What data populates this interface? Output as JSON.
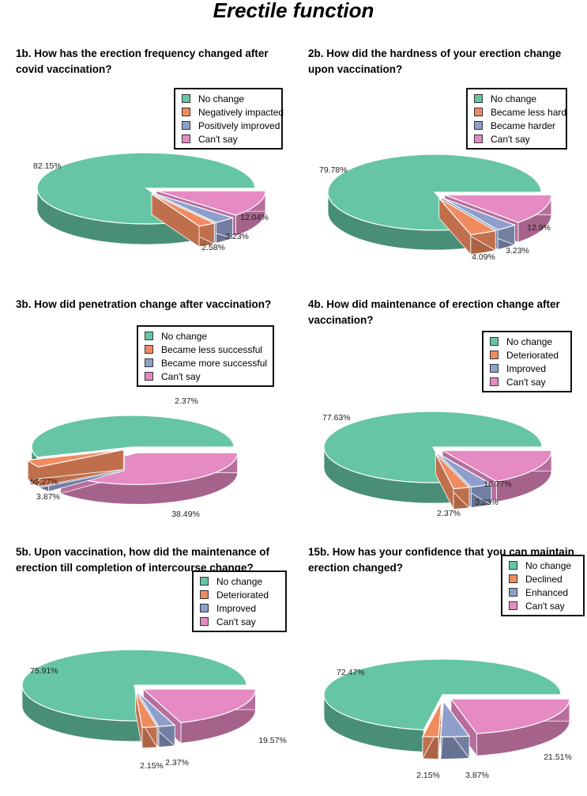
{
  "page_title": "Erectile function",
  "colors": {
    "no_change": "#66c5a5",
    "negative": "#f08b5f",
    "positive": "#8f9fcb",
    "cant_say": "#e58ac3"
  },
  "chart_data": [
    {
      "type": "pie",
      "title": "1b. How has the erection frequency changed after covid vaccination?",
      "labels": [
        "No change",
        "Negatively impacted",
        "Positively improved",
        "Can't say"
      ],
      "values": [
        82.15,
        2.58,
        3.23,
        12.04
      ],
      "value_labels": [
        "82.15%",
        "2.58%",
        "3.23%",
        "12.04%"
      ],
      "legend_position": "top-right"
    },
    {
      "type": "pie",
      "title": "2b.  How did the hardness of your erection change upon vaccination?",
      "labels": [
        "No change",
        "Became less hard",
        "Became harder",
        "Can't say"
      ],
      "values": [
        79.78,
        4.09,
        3.23,
        12.9
      ],
      "value_labels": [
        "79.78%",
        "4.09%",
        "3.23%",
        "12.9%"
      ],
      "legend_position": "top-right"
    },
    {
      "type": "pie",
      "title": "3b. How did penetration change after vaccination?",
      "labels": [
        "No change",
        "Became less successful",
        "Became more successful",
        "Can't say"
      ],
      "values": [
        55.27,
        3.87,
        2.37,
        38.49
      ],
      "value_labels": [
        "55.27%",
        "3.87%",
        "2.37%",
        "38.49%"
      ],
      "legend_position": "top-right"
    },
    {
      "type": "pie",
      "title": "4b. How did maintenance of erection change after vaccination?",
      "labels": [
        "No change",
        "Deteriorated",
        "Improved",
        "Can't say"
      ],
      "values": [
        77.63,
        2.37,
        3.23,
        16.77
      ],
      "value_labels": [
        "77.63%",
        "2.37%",
        "3.23%",
        "16.77%"
      ],
      "legend_position": "top-right"
    },
    {
      "type": "pie",
      "title": "5b. Upon vaccination, how did the maintenance of erection till completion of intercourse change?",
      "labels": [
        "No change",
        "Deteriorated",
        "Improved",
        "Can't say"
      ],
      "values": [
        75.91,
        2.15,
        2.37,
        19.57
      ],
      "value_labels": [
        "75.91%",
        "2.15%",
        "2.37%",
        "19.57%"
      ],
      "legend_position": "top-right"
    },
    {
      "type": "pie",
      "title": "15b. How has your confidence that you can maintain erection changed?",
      "labels": [
        "No change",
        "Declined",
        "Enhanced",
        "Can't say"
      ],
      "values": [
        72.47,
        2.15,
        3.87,
        21.51
      ],
      "value_labels": [
        "72.47%",
        "2.15%",
        "3.87%",
        "21.51%"
      ],
      "legend_position": "top-right"
    }
  ]
}
